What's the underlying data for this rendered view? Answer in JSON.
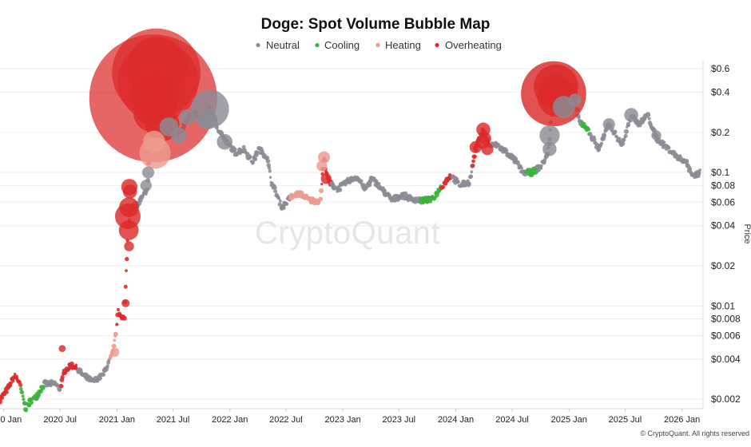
{
  "chart_data": {
    "type": "scatter",
    "title": "Doge: Spot Volume Bubble Map",
    "ylabel": "Price",
    "y_scale": "log",
    "ylim": [
      0.0017,
      0.68
    ],
    "xlim": [
      "2019-12-20",
      "2026-03-10"
    ],
    "watermark": "CryptoQuant",
    "credit": "© CryptoQuant. All rights reserved",
    "legend": [
      {
        "key": "neutral",
        "label": "Neutral",
        "color": "#8c8c96"
      },
      {
        "key": "cooling",
        "label": "Cooling",
        "color": "#3cb33c"
      },
      {
        "key": "heating",
        "label": "Heating",
        "color": "#eb9c90"
      },
      {
        "key": "overheating",
        "label": "Overheating",
        "color": "#dc2b2b"
      }
    ],
    "y_ticks": [
      {
        "value": 0.6,
        "label": "$0.6"
      },
      {
        "value": 0.4,
        "label": "$0.4"
      },
      {
        "value": 0.2,
        "label": "$0.2"
      },
      {
        "value": 0.1,
        "label": "$0.1"
      },
      {
        "value": 0.08,
        "label": "$0.08"
      },
      {
        "value": 0.06,
        "label": "$0.06"
      },
      {
        "value": 0.04,
        "label": "$0.04"
      },
      {
        "value": 0.02,
        "label": "$0.02"
      },
      {
        "value": 0.01,
        "label": "$0.01"
      },
      {
        "value": 0.008,
        "label": "$0.008"
      },
      {
        "value": 0.006,
        "label": "$0.006"
      },
      {
        "value": 0.004,
        "label": "$0.004"
      },
      {
        "value": 0.002,
        "label": "$0.002"
      }
    ],
    "x_ticks": [
      {
        "date": "2020-01-01",
        "label": "2020 Jan"
      },
      {
        "date": "2020-07-01",
        "label": "2020 Jul"
      },
      {
        "date": "2021-01-01",
        "label": "2021 Jan"
      },
      {
        "date": "2021-07-01",
        "label": "2021 Jul"
      },
      {
        "date": "2022-01-01",
        "label": "2022 Jan"
      },
      {
        "date": "2022-07-01",
        "label": "2022 Jul"
      },
      {
        "date": "2023-01-01",
        "label": "2023 Jan"
      },
      {
        "date": "2023-07-01",
        "label": "2023 Jul"
      },
      {
        "date": "2024-01-01",
        "label": "2024 Jan"
      },
      {
        "date": "2024-07-01",
        "label": "2024 Jul"
      },
      {
        "date": "2025-01-01",
        "label": "2025 Jan"
      },
      {
        "date": "2025-07-01",
        "label": "2025 Jul"
      },
      {
        "date": "2026-01-01",
        "label": "2026 Jan"
      }
    ],
    "price_path": [
      [
        "2019-12-20",
        0.002
      ],
      [
        "2020-01-15",
        0.0024
      ],
      [
        "2020-02-05",
        0.003
      ],
      [
        "2020-02-20",
        0.0027
      ],
      [
        "2020-03-12",
        0.0017
      ],
      [
        "2020-03-25",
        0.0019
      ],
      [
        "2020-04-15",
        0.0021
      ],
      [
        "2020-05-10",
        0.0026
      ],
      [
        "2020-06-15",
        0.0026
      ],
      [
        "2020-07-01",
        0.0024
      ],
      [
        "2020-07-15",
        0.0032
      ],
      [
        "2020-08-05",
        0.0036
      ],
      [
        "2020-08-20",
        0.0035
      ],
      [
        "2020-09-15",
        0.003
      ],
      [
        "2020-10-15",
        0.0027
      ],
      [
        "2020-11-15",
        0.003
      ],
      [
        "2020-12-01",
        0.0036
      ],
      [
        "2020-12-20",
        0.0045
      ],
      [
        "2021-01-05",
        0.009
      ],
      [
        "2021-01-25",
        0.008
      ],
      [
        "2021-02-06",
        0.04
      ],
      [
        "2021-02-15",
        0.055
      ],
      [
        "2021-03-10",
        0.058
      ],
      [
        "2021-04-10",
        0.075
      ],
      [
        "2021-04-20",
        0.3
      ],
      [
        "2021-05-08",
        0.55
      ],
      [
        "2021-05-25",
        0.3
      ],
      [
        "2021-06-20",
        0.22
      ],
      [
        "2021-07-20",
        0.19
      ],
      [
        "2021-08-15",
        0.25
      ],
      [
        "2021-09-10",
        0.28
      ],
      [
        "2021-10-05",
        0.24
      ],
      [
        "2021-10-28",
        0.3
      ],
      [
        "2021-11-20",
        0.22
      ],
      [
        "2021-12-20",
        0.17
      ],
      [
        "2022-01-20",
        0.14
      ],
      [
        "2022-02-15",
        0.15
      ],
      [
        "2022-03-15",
        0.12
      ],
      [
        "2022-04-05",
        0.15
      ],
      [
        "2022-05-01",
        0.13
      ],
      [
        "2022-05-15",
        0.085
      ],
      [
        "2022-06-18",
        0.055
      ],
      [
        "2022-07-15",
        0.065
      ],
      [
        "2022-08-15",
        0.07
      ],
      [
        "2022-09-15",
        0.062
      ],
      [
        "2022-10-20",
        0.061
      ],
      [
        "2022-11-01",
        0.13
      ],
      [
        "2022-11-15",
        0.085
      ],
      [
        "2022-12-15",
        0.075
      ],
      [
        "2023-01-20",
        0.087
      ],
      [
        "2023-02-15",
        0.093
      ],
      [
        "2023-03-15",
        0.075
      ],
      [
        "2023-04-05",
        0.09
      ],
      [
        "2023-05-15",
        0.072
      ],
      [
        "2023-06-10",
        0.062
      ],
      [
        "2023-07-10",
        0.068
      ],
      [
        "2023-08-15",
        0.063
      ],
      [
        "2023-09-15",
        0.062
      ],
      [
        "2023-10-15",
        0.062
      ],
      [
        "2023-11-15",
        0.078
      ],
      [
        "2023-12-15",
        0.095
      ],
      [
        "2024-01-15",
        0.08
      ],
      [
        "2024-02-15",
        0.085
      ],
      [
        "2024-03-05",
        0.15
      ],
      [
        "2024-03-28",
        0.21
      ],
      [
        "2024-04-20",
        0.16
      ],
      [
        "2024-05-15",
        0.16
      ],
      [
        "2024-06-15",
        0.14
      ],
      [
        "2024-07-15",
        0.12
      ],
      [
        "2024-08-05",
        0.1
      ],
      [
        "2024-09-01",
        0.1
      ],
      [
        "2024-10-01",
        0.11
      ],
      [
        "2024-10-25",
        0.14
      ],
      [
        "2024-11-12",
        0.38
      ],
      [
        "2024-12-08",
        0.45
      ],
      [
        "2024-12-25",
        0.32
      ],
      [
        "2025-01-20",
        0.35
      ],
      [
        "2025-02-03",
        0.24
      ],
      [
        "2025-02-25",
        0.22
      ],
      [
        "2025-04-07",
        0.15
      ],
      [
        "2025-05-10",
        0.23
      ],
      [
        "2025-06-22",
        0.16
      ],
      [
        "2025-07-21",
        0.27
      ],
      [
        "2025-08-15",
        0.23
      ],
      [
        "2025-09-12",
        0.27
      ],
      [
        "2025-10-10",
        0.18
      ],
      [
        "2025-11-20",
        0.15
      ],
      [
        "2025-12-20",
        0.13
      ],
      [
        "2026-01-15",
        0.12
      ],
      [
        "2026-02-05",
        0.095
      ],
      [
        "2026-03-01",
        0.1
      ]
    ],
    "phases": [
      {
        "from": "2019-12-20",
        "to": "2020-02-25",
        "status": "overheating"
      },
      {
        "from": "2020-02-25",
        "to": "2020-05-10",
        "status": "cooling"
      },
      {
        "from": "2020-05-10",
        "to": "2020-07-05",
        "status": "neutral"
      },
      {
        "from": "2020-07-05",
        "to": "2020-08-25",
        "status": "overheating"
      },
      {
        "from": "2020-08-25",
        "to": "2020-12-10",
        "status": "neutral"
      },
      {
        "from": "2020-12-10",
        "to": "2021-01-01",
        "status": "heating"
      },
      {
        "from": "2021-01-01",
        "to": "2021-02-28",
        "status": "overheating"
      },
      {
        "from": "2021-02-28",
        "to": "2021-04-12",
        "status": "neutral"
      },
      {
        "from": "2021-04-12",
        "to": "2021-06-15",
        "status": "overheating"
      },
      {
        "from": "2021-06-15",
        "to": "2022-07-15",
        "status": "neutral"
      },
      {
        "from": "2022-07-15",
        "to": "2022-11-25",
        "status": "heating"
      },
      {
        "from": "2022-10-25",
        "to": "2022-11-25",
        "status": "overheating"
      },
      {
        "from": "2022-11-25",
        "to": "2023-09-10",
        "status": "neutral"
      },
      {
        "from": "2023-09-10",
        "to": "2023-11-15",
        "status": "cooling"
      },
      {
        "from": "2023-11-15",
        "to": "2023-12-20",
        "status": "overheating"
      },
      {
        "from": "2023-12-20",
        "to": "2024-02-25",
        "status": "neutral"
      },
      {
        "from": "2024-02-25",
        "to": "2024-04-20",
        "status": "overheating"
      },
      {
        "from": "2024-04-20",
        "to": "2024-08-15",
        "status": "neutral"
      },
      {
        "from": "2024-08-15",
        "to": "2024-09-20",
        "status": "cooling"
      },
      {
        "from": "2024-09-20",
        "to": "2025-02-10",
        "status": "neutral"
      },
      {
        "from": "2025-02-10",
        "to": "2025-03-10",
        "status": "cooling"
      },
      {
        "from": "2025-03-10",
        "to": "2026-03-10",
        "status": "neutral"
      }
    ],
    "bubbles": [
      {
        "date": "2021-04-28",
        "price": 0.36,
        "volume": 100,
        "status": "overheating"
      },
      {
        "date": "2021-05-08",
        "price": 0.56,
        "volume": 48,
        "status": "overheating"
      },
      {
        "date": "2021-05-14",
        "price": 0.48,
        "volume": 40,
        "status": "overheating"
      },
      {
        "date": "2021-05-10",
        "price": 0.62,
        "volume": 22,
        "status": "overheating"
      },
      {
        "date": "2021-05-05",
        "price": 0.38,
        "volume": 14,
        "status": "overheating"
      },
      {
        "date": "2021-04-26",
        "price": 0.28,
        "volume": 9,
        "status": "overheating"
      },
      {
        "date": "2021-05-18",
        "price": 0.33,
        "volume": 8,
        "status": "overheating"
      },
      {
        "date": "2021-05-28",
        "price": 0.23,
        "volume": 7,
        "status": "overheating"
      },
      {
        "date": "2021-04-18",
        "price": 0.3,
        "volume": 6,
        "status": "overheating"
      },
      {
        "date": "2021-05-04",
        "price": 0.14,
        "volume": 6,
        "status": "heating"
      },
      {
        "date": "2021-05-01",
        "price": 0.17,
        "volume": 3,
        "status": "heating"
      },
      {
        "date": "2021-02-05",
        "price": 0.047,
        "volume": 4,
        "status": "overheating"
      },
      {
        "date": "2021-02-09",
        "price": 0.055,
        "volume": 2.4,
        "status": "overheating"
      },
      {
        "date": "2021-02-08",
        "price": 0.037,
        "volume": 2.4,
        "status": "overheating"
      },
      {
        "date": "2021-02-10",
        "price": 0.078,
        "volume": 1.6,
        "status": "overheating"
      },
      {
        "date": "2021-02-12",
        "price": 0.072,
        "volume": 1.2,
        "status": "overheating"
      },
      {
        "date": "2021-02-09",
        "price": 0.028,
        "volume": 0.6,
        "status": "overheating"
      },
      {
        "date": "2021-06-18",
        "price": 0.22,
        "volume": 2.2,
        "status": "neutral"
      },
      {
        "date": "2021-07-20",
        "price": 0.19,
        "volume": 1.5,
        "status": "neutral"
      },
      {
        "date": "2021-08-15",
        "price": 0.26,
        "volume": 1.5,
        "status": "neutral"
      },
      {
        "date": "2021-10-28",
        "price": 0.3,
        "volume": 9,
        "status": "neutral"
      },
      {
        "date": "2021-10-20",
        "price": 0.25,
        "volume": 2.5,
        "status": "neutral"
      },
      {
        "date": "2021-12-15",
        "price": 0.17,
        "volume": 1.5,
        "status": "neutral"
      },
      {
        "date": "2021-04-12",
        "price": 0.1,
        "volume": 0.9,
        "status": "neutral"
      },
      {
        "date": "2021-04-05",
        "price": 0.08,
        "volume": 0.8,
        "status": "neutral"
      },
      {
        "date": "2024-11-12",
        "price": 0.39,
        "volume": 26,
        "status": "overheating"
      },
      {
        "date": "2024-11-20",
        "price": 0.44,
        "volume": 12,
        "status": "overheating"
      },
      {
        "date": "2024-11-25",
        "price": 0.37,
        "volume": 10,
        "status": "overheating"
      },
      {
        "date": "2024-11-15",
        "price": 0.42,
        "volume": 6,
        "status": "overheating"
      },
      {
        "date": "2024-12-15",
        "price": 0.31,
        "volume": 3,
        "status": "neutral"
      },
      {
        "date": "2024-10-30",
        "price": 0.19,
        "volume": 2.5,
        "status": "neutral"
      },
      {
        "date": "2024-10-30",
        "price": 0.15,
        "volume": 1.2,
        "status": "neutral"
      },
      {
        "date": "2024-03-30",
        "price": 0.21,
        "volume": 1.2,
        "status": "overheating"
      },
      {
        "date": "2024-03-28",
        "price": 0.17,
        "volume": 1.2,
        "status": "overheating"
      },
      {
        "date": "2024-04-05",
        "price": 0.18,
        "volume": 0.9,
        "status": "overheating"
      },
      {
        "date": "2024-04-12",
        "price": 0.15,
        "volume": 0.9,
        "status": "overheating"
      },
      {
        "date": "2024-03-05",
        "price": 0.155,
        "volume": 0.9,
        "status": "overheating"
      },
      {
        "date": "2022-11-01",
        "price": 0.13,
        "volume": 0.9,
        "status": "heating"
      },
      {
        "date": "2022-10-25",
        "price": 0.112,
        "volume": 0.7,
        "status": "heating"
      },
      {
        "date": "2022-11-08",
        "price": 0.09,
        "volume": 0.7,
        "status": "overheating"
      },
      {
        "date": "2025-07-21",
        "price": 0.27,
        "volume": 1.2,
        "status": "neutral"
      },
      {
        "date": "2025-05-10",
        "price": 0.23,
        "volume": 0.9,
        "status": "neutral"
      },
      {
        "date": "2025-01-20",
        "price": 0.35,
        "volume": 1.0,
        "status": "neutral"
      },
      {
        "date": "2025-10-10",
        "price": 0.19,
        "volume": 0.6,
        "status": "neutral"
      },
      {
        "date": "2021-01-29",
        "price": 0.0105,
        "volume": 0.4,
        "status": "overheating"
      },
      {
        "date": "2020-07-08",
        "price": 0.0048,
        "volume": 0.3,
        "status": "overheating"
      },
      {
        "date": "2020-12-25",
        "price": 0.0045,
        "volume": 0.5,
        "status": "heating"
      }
    ]
  }
}
